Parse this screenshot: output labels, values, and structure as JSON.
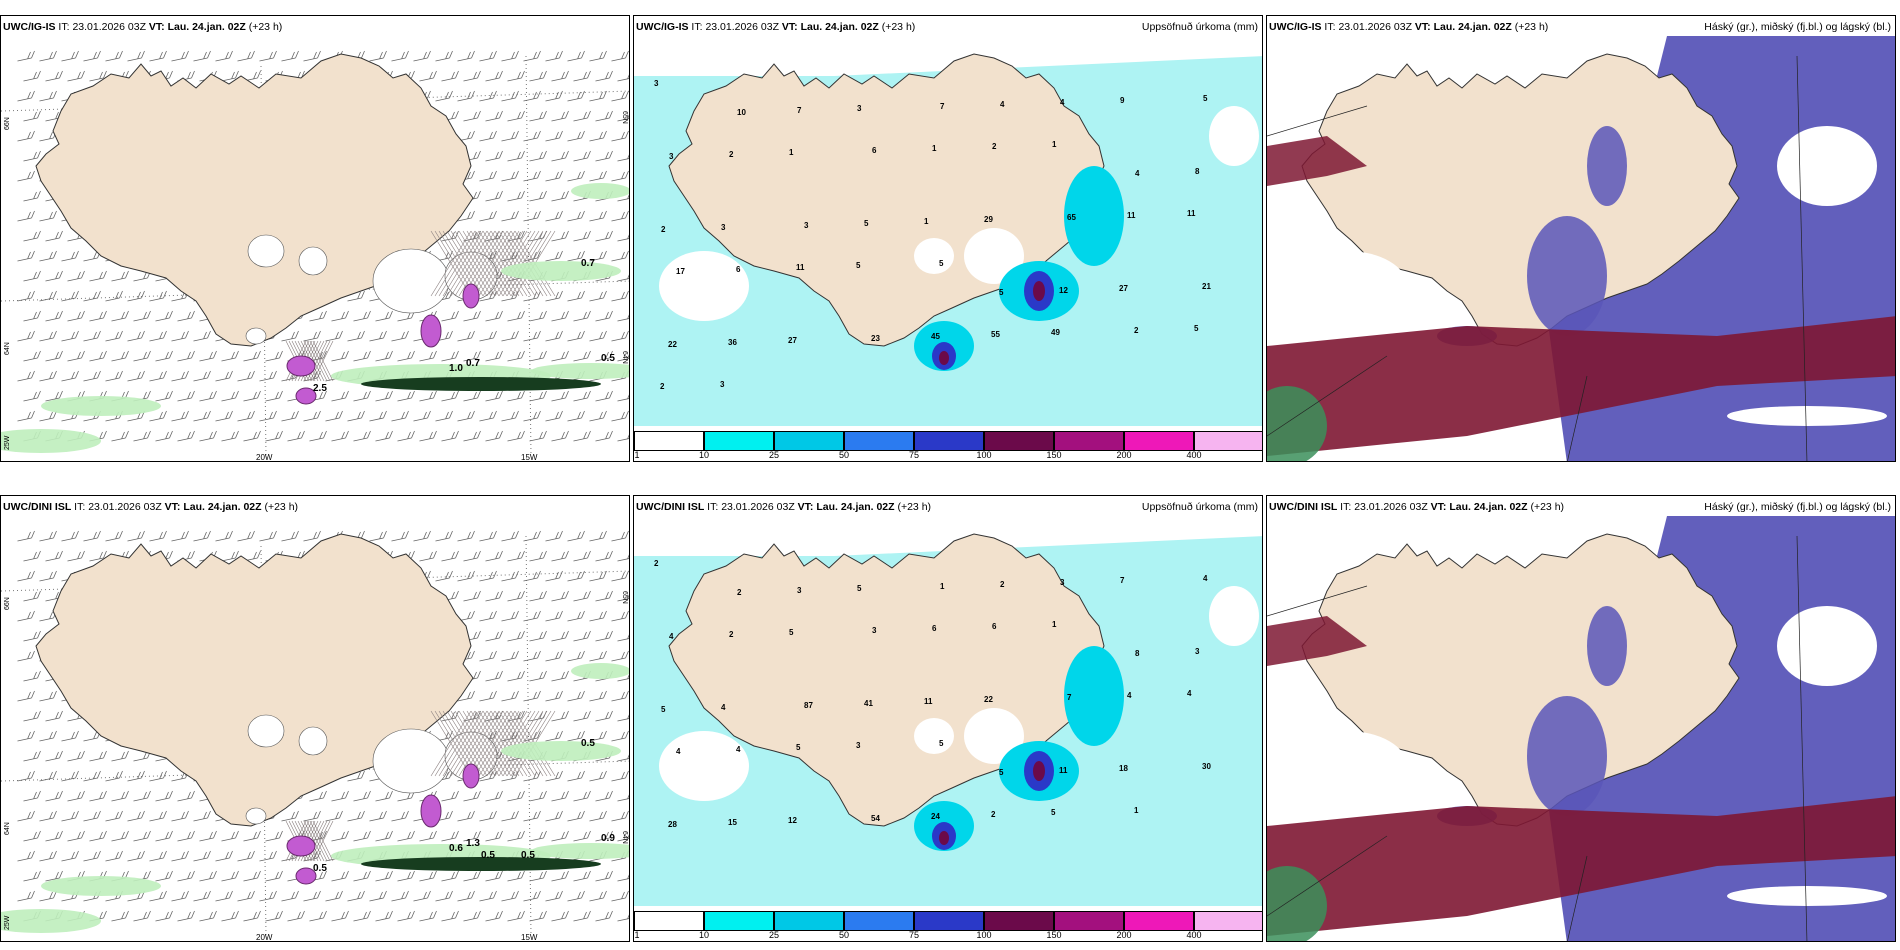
{
  "colors": {
    "land": "#f2e1cd",
    "precip_light": "#aef3f3",
    "snow_hatch": "#8a7f7f",
    "high_cloud": "#5a56b8",
    "mid_cloud": "#7e1733",
    "low_cloud": "#3b8f5a"
  },
  "rows": [
    {
      "wind": {
        "model": "UWC/IG-IS",
        "it_label": "IT:",
        "it_value": "23.01.2026 03Z",
        "vt_label": "VT:",
        "vt_value": "Lau. 24.jan. 02Z",
        "lead": "(+23 h)",
        "lat_left": [
          "66N",
          "64N",
          "25W"
        ],
        "lat_right": [
          "65N",
          "64N"
        ],
        "lon_labels": [
          "20W",
          "15W"
        ],
        "values": [
          "0.7",
          "1.0",
          "0.7",
          "0.5",
          "2.5"
        ]
      },
      "precip": {
        "model": "UWC/IG-IS",
        "it_label": "IT:",
        "it_value": "23.01.2026 03Z",
        "vt_label": "VT:",
        "vt_value": "Lau. 24.jan. 02Z",
        "lead": "(+23 h)",
        "title": "Uppsöfnuð úrkoma (mm)",
        "values": [
          "3",
          "10",
          "7",
          "3",
          "7",
          "4",
          "4",
          "9",
          "5",
          "3",
          "2",
          "1",
          "6",
          "1",
          "2",
          "1",
          "4",
          "8",
          "2",
          "3",
          "3",
          "5",
          "1",
          "29",
          "65",
          "11",
          "11",
          "17",
          "6",
          "11",
          "5",
          "5",
          "5",
          "12",
          "27",
          "21",
          "22",
          "36",
          "27",
          "23",
          "45",
          "55",
          "49",
          "2",
          "5",
          "2",
          "3"
        ]
      },
      "cloud": {
        "model": "UWC/IG-IS",
        "it_label": "IT:",
        "it_value": "23.01.2026 03Z",
        "vt_label": "VT:",
        "vt_value": "Lau. 24.jan. 02Z",
        "lead": "(+23 h)",
        "title": "Háský (gr.), miðský (fj.bl.) og lágský (bl.)"
      }
    },
    {
      "wind": {
        "model": "UWC/DINI ISL",
        "it_label": "IT:",
        "it_value": "23.01.2026 03Z",
        "vt_label": "VT:",
        "vt_value": "Lau. 24.jan. 02Z",
        "lead": "(+23 h)",
        "lat_left": [
          "66N",
          "64N",
          "25W"
        ],
        "lat_right": [
          "65N",
          "64N"
        ],
        "lon_labels": [
          "20W",
          "15W"
        ],
        "values": [
          "0.5",
          "0.6",
          "1.3",
          "0.9",
          "0.5",
          "0.5",
          "0.5"
        ]
      },
      "precip": {
        "model": "UWC/DINI ISL",
        "it_label": "IT:",
        "it_value": "23.01.2026 03Z",
        "vt_label": "VT:",
        "vt_value": "Lau. 24.jan. 02Z",
        "lead": "(+23 h)",
        "title": "Uppsöfnuð úrkoma (mm)",
        "values": [
          "2",
          "2",
          "3",
          "5",
          "1",
          "2",
          "3",
          "7",
          "4",
          "4",
          "2",
          "5",
          "3",
          "6",
          "6",
          "1",
          "8",
          "3",
          "5",
          "4",
          "87",
          "41",
          "11",
          "22",
          "7",
          "4",
          "4",
          "4",
          "4",
          "5",
          "3",
          "5",
          "5",
          "11",
          "18",
          "30",
          "28",
          "15",
          "12",
          "54",
          "24",
          "2",
          "5",
          "1"
        ]
      },
      "cloud": {
        "model": "UWC/DINI ISL",
        "it_label": "IT:",
        "it_value": "23.01.2026 03Z",
        "vt_label": "VT:",
        "vt_value": "Lau. 24.jan. 02Z",
        "lead": "(+23 h)",
        "title": "Háský (gr.), miðský (fj.bl.) og lágský (bl.)"
      }
    }
  ],
  "colorbar": {
    "labels": [
      "1",
      "10",
      "25",
      "50",
      "75",
      "100",
      "150",
      "200",
      "400"
    ],
    "colors": [
      "#ffffff",
      "#00f0f0",
      "#00c8e6",
      "#2b7bf0",
      "#2a39c8",
      "#6b0a4a",
      "#a3107e",
      "#ee18b8",
      "#f6b4f0"
    ]
  }
}
